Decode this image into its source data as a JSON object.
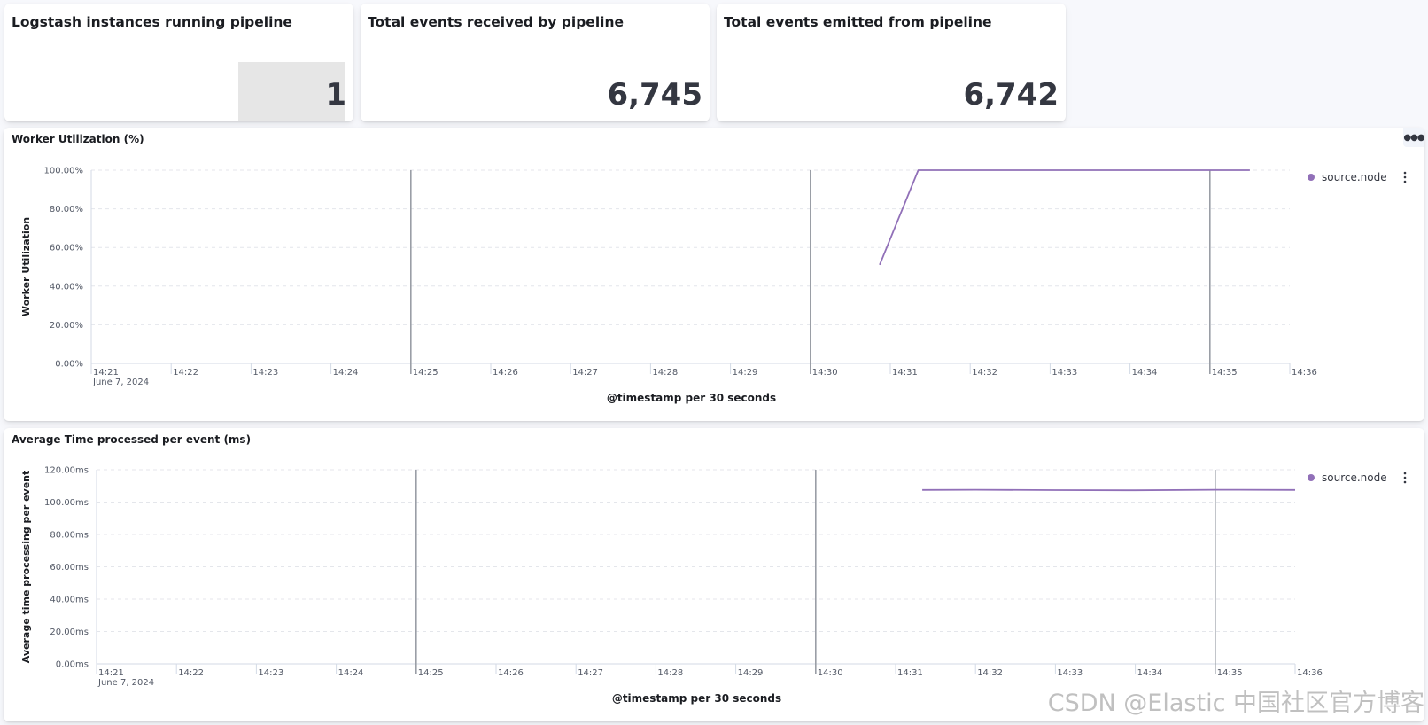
{
  "metrics": [
    {
      "title": "Logstash instances running pipeline",
      "value": "1",
      "bar_fraction": 1
    },
    {
      "title": "Total events received by pipeline",
      "value": "6,745"
    },
    {
      "title": "Total events emitted from pipeline",
      "value": "6,742"
    }
  ],
  "charts": {
    "worker": {
      "title": "Worker Utilization (%)",
      "menu_icon": "ellipsis-icon",
      "chart_data": {
        "type": "line",
        "ylabel": "Worker Utilization",
        "xlabel": "@timestamp per 30 seconds",
        "x_date_label": "June 7, 2024",
        "x_ticks": [
          "14:21",
          "14:22",
          "14:23",
          "14:24",
          "14:25",
          "14:26",
          "14:27",
          "14:28",
          "14:29",
          "14:30",
          "14:31",
          "14:32",
          "14:33",
          "14:34",
          "14:35",
          "14:36"
        ],
        "y_ticks": [
          "0.00%",
          "20.00%",
          "40.00%",
          "60.00%",
          "80.00%",
          "100.00%"
        ],
        "ylim": [
          0,
          100
        ],
        "xlim": [
          "14:21",
          "14:36"
        ],
        "markers": [
          "14:25",
          "14:30",
          "14:35"
        ],
        "grid": true,
        "legend_position": "right",
        "series": [
          {
            "name": "source.node",
            "color": "#9170b8",
            "x": [
              "14:30:52",
              "14:31:21",
              "14:35:30"
            ],
            "values": [
              51,
              100,
              100
            ]
          }
        ]
      }
    },
    "avg_time": {
      "title": "Average Time processed per event (ms)",
      "chart_data": {
        "type": "line",
        "ylabel": "Average time processing per event",
        "xlabel": "@timestamp per 30 seconds",
        "x_date_label": "June 7, 2024",
        "x_ticks": [
          "14:21",
          "14:22",
          "14:23",
          "14:24",
          "14:25",
          "14:26",
          "14:27",
          "14:28",
          "14:29",
          "14:30",
          "14:31",
          "14:32",
          "14:33",
          "14:34",
          "14:35",
          "14:36"
        ],
        "y_ticks": [
          "0.00ms",
          "20.00ms",
          "40.00ms",
          "60.00ms",
          "80.00ms",
          "100.00ms",
          "120.00ms"
        ],
        "ylim": [
          0,
          120
        ],
        "xlim": [
          "14:21",
          "14:36"
        ],
        "markers": [
          "14:25",
          "14:30",
          "14:35"
        ],
        "grid": true,
        "legend_position": "right",
        "series": [
          {
            "name": "source.node",
            "color": "#9170b8",
            "x": [
              "14:31:20",
              "14:32:00",
              "14:33:00",
              "14:34:00",
              "14:35:00",
              "14:36:00"
            ],
            "values": [
              107.5,
              107.6,
              107.4,
              107.3,
              107.6,
              107.5
            ]
          }
        ]
      }
    }
  },
  "watermark": "CSDN @Elastic 中国社区官方博客"
}
